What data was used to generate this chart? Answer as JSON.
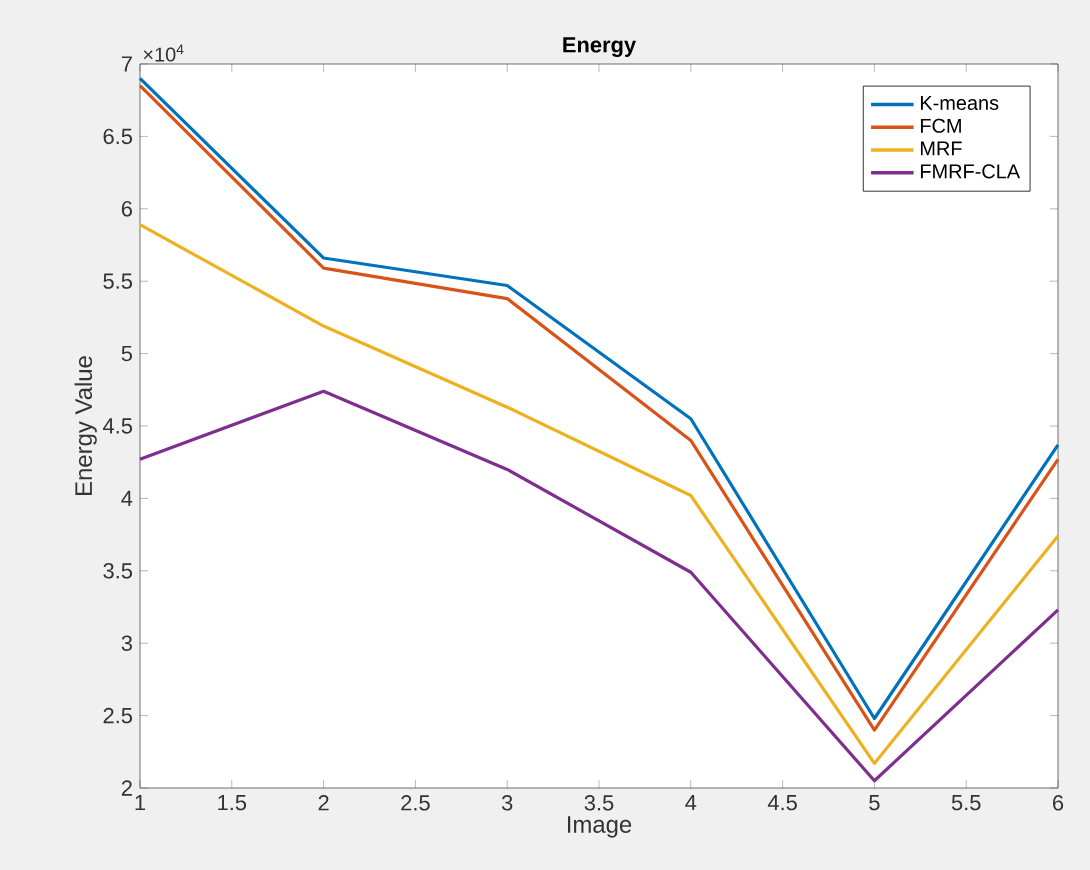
{
  "chart_data": {
    "type": "line",
    "title": "Energy",
    "xlabel": "Image",
    "ylabel": "Energy Value",
    "annotations": [
      "×10$^{4}$"
    ],
    "x": [
      1,
      2,
      3,
      4,
      5,
      6
    ],
    "series": [
      {
        "name": "K-means",
        "color": "#0072bd",
        "values": [
          6.9,
          5.66,
          5.47,
          4.55,
          2.48,
          4.37
        ]
      },
      {
        "name": "FCM",
        "color": "#d95319",
        "values": [
          6.85,
          5.59,
          5.38,
          4.4,
          2.4,
          4.27
        ]
      },
      {
        "name": "MRF",
        "color": "#edb120",
        "values": [
          5.89,
          5.19,
          4.63,
          4.02,
          2.17,
          3.74
        ]
      },
      {
        "name": "FMRF-CLA",
        "color": "#7e2f8e",
        "values": [
          4.27,
          4.74,
          4.2,
          3.49,
          2.05,
          3.23
        ]
      }
    ],
    "xlim": [
      1,
      6
    ],
    "ylim": [
      2,
      7
    ],
    "xticks": [
      1,
      1.5,
      2,
      2.5,
      3,
      3.5,
      4,
      4.5,
      5,
      5.5,
      6
    ],
    "yticks": [
      2,
      2.5,
      3,
      3.5,
      4,
      4.5,
      5,
      5.5,
      6,
      6.5,
      7
    ],
    "grid": false,
    "legend": "top right",
    "marker": "none",
    "line_style": "solid"
  }
}
